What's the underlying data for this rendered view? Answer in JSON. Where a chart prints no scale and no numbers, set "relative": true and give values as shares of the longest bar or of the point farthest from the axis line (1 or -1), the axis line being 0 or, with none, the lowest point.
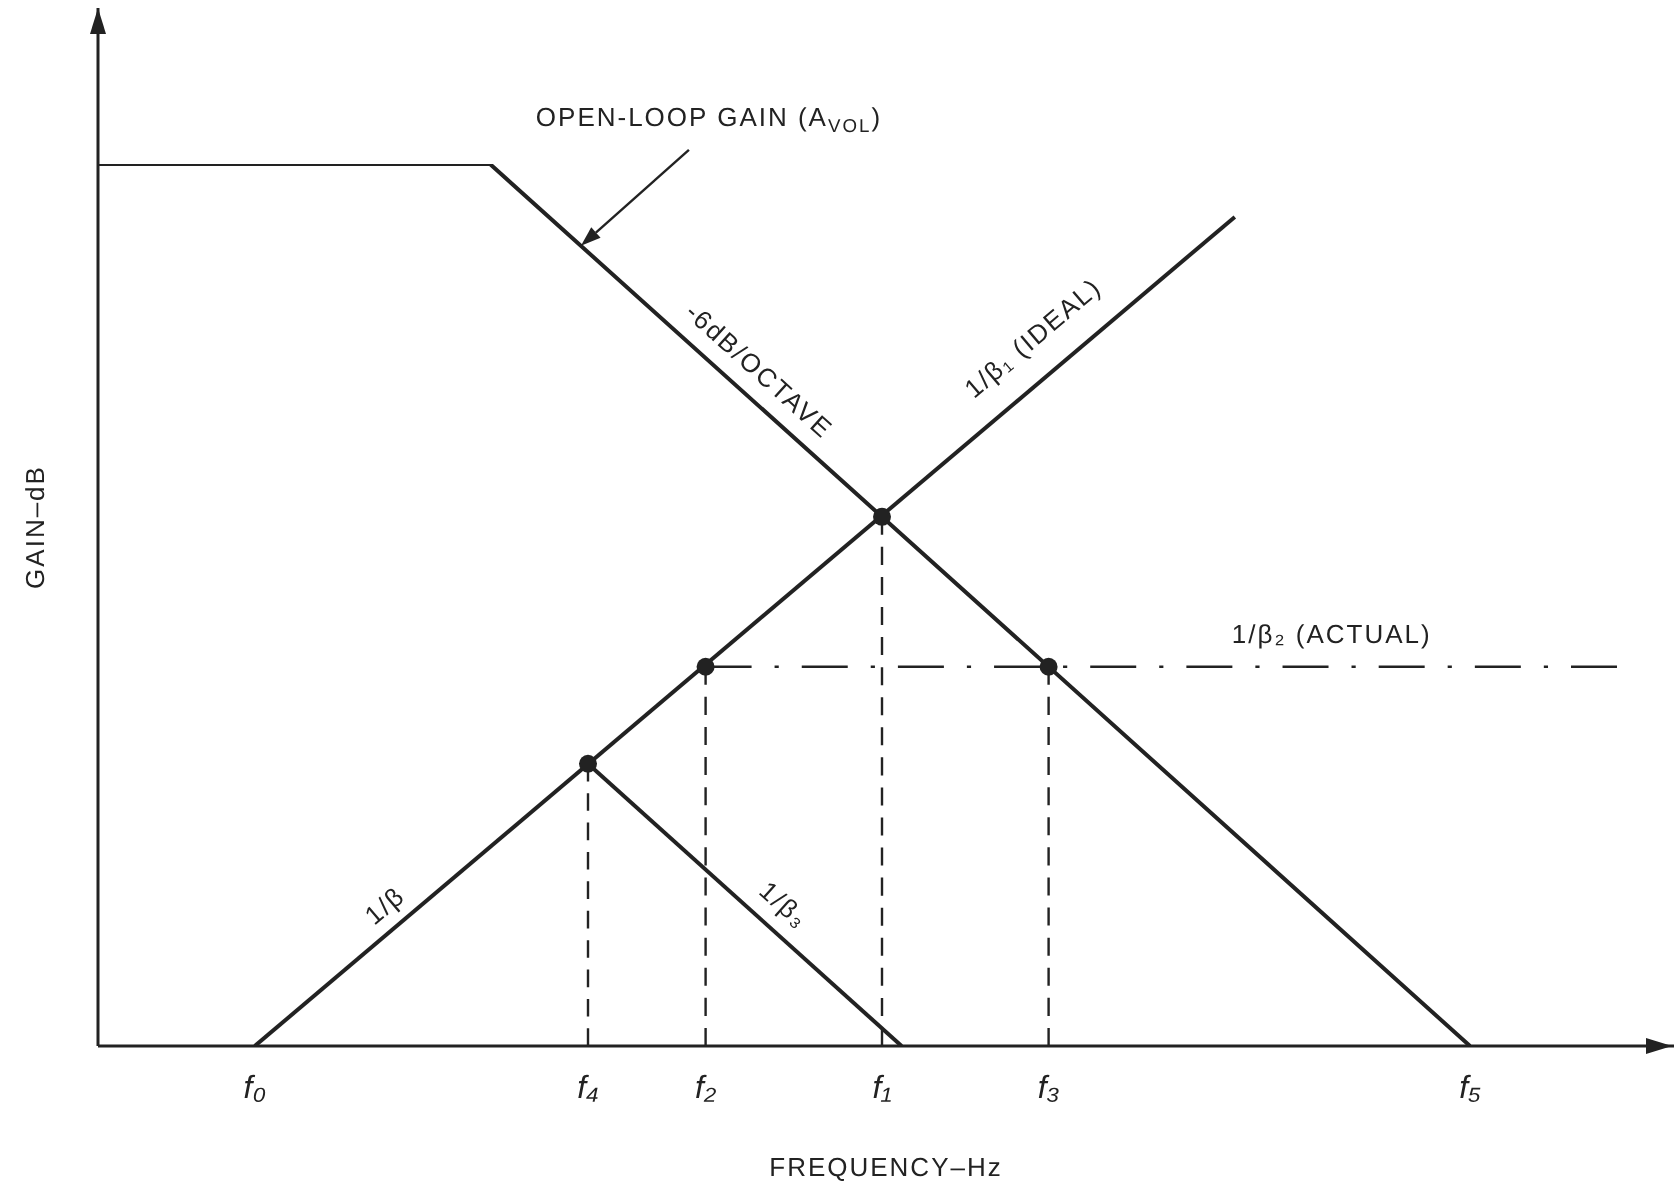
{
  "chart_data": {
    "type": "line",
    "relative": true,
    "xlabel": "FREQUENCY–Hz",
    "ylabel": "GAIN–dB",
    "tick_labels": "x",
    "line_style": "solid",
    "marker": "none",
    "categories": [
      null,
      null,
      null,
      null,
      null,
      null,
      null,
      null,
      null,
      null,
      null,
      null,
      null,
      null,
      null,
      null,
      "f₀",
      null,
      null,
      null,
      null,
      null,
      null,
      null,
      null,
      null,
      null,
      null,
      null,
      null,
      null,
      null,
      null,
      null,
      null,
      null,
      null,
      null,
      null,
      null,
      null,
      null,
      null,
      null,
      null,
      null,
      null,
      null,
      null,
      null,
      "f₄",
      null,
      null,
      null,
      null,
      null,
      null,
      null,
      null,
      null,
      null,
      null,
      "f₂",
      null,
      null,
      null,
      null,
      null,
      null,
      null,
      null,
      null,
      null,
      null,
      null,
      null,
      null,
      null,
      null,
      null,
      "f₁",
      null,
      null,
      null,
      null,
      null,
      null,
      null,
      null,
      null,
      null,
      null,
      null,
      null,
      null,
      null,
      null,
      "f₃",
      null,
      null,
      null,
      null,
      null,
      null,
      null,
      null,
      null,
      null,
      null,
      null,
      null,
      null,
      null,
      null,
      null,
      null,
      null,
      null,
      null,
      null,
      null,
      null,
      null,
      null,
      null,
      null,
      null,
      null,
      null,
      null,
      null,
      null,
      null,
      null,
      null,
      null,
      null,
      null,
      null,
      null,
      "f₅",
      null,
      null,
      null,
      null,
      null,
      null,
      null,
      null,
      null,
      null,
      null,
      null,
      null,
      null,
      null,
      null,
      null,
      null,
      null,
      null
    ],
    "series": [
      {
        "color": "#222222",
        "values": [
          1,
          null,
          null,
          null,
          null,
          null,
          null,
          null,
          null,
          null,
          null,
          null,
          null,
          null,
          null,
          null,
          null,
          null,
          null,
          null,
          null,
          null,
          null,
          null,
          null,
          null,
          null,
          null,
          null,
          null,
          null,
          null,
          null,
          null,
          null,
          null,
          null,
          null,
          null,
          null,
          1,
          null,
          null,
          null,
          null,
          null,
          null,
          null,
          null,
          null,
          null,
          null,
          null,
          null,
          null,
          null,
          null,
          null,
          null,
          null,
          null,
          null,
          null,
          null,
          null,
          null,
          null,
          null,
          null,
          null,
          null,
          null,
          null,
          null,
          null,
          null,
          null,
          null,
          null,
          null,
          null,
          null,
          null,
          null,
          null,
          null,
          null,
          null,
          null,
          null,
          null,
          null,
          null,
          null,
          null,
          null,
          null,
          null,
          null,
          null,
          null,
          null,
          null,
          null,
          null,
          null,
          null,
          null,
          null,
          null,
          null,
          null,
          null,
          null,
          null,
          null,
          null,
          null,
          null,
          null,
          null,
          null,
          null,
          null,
          null,
          null,
          null,
          null,
          null,
          null,
          null,
          null,
          null,
          null,
          null,
          null,
          null,
          null,
          null,
          null,
          0,
          null,
          null,
          null,
          null,
          null,
          null,
          null,
          null,
          null,
          null,
          null,
          null,
          null,
          null,
          null,
          null,
          null,
          null,
          null,
          null
        ]
      },
      {
        "name": "1/β₁ (IDEAL)",
        "color": "#222222",
        "values": [
          null,
          null,
          null,
          null,
          null,
          null,
          null,
          null,
          null,
          null,
          null,
          null,
          null,
          null,
          null,
          null,
          0,
          null,
          null,
          null,
          null,
          null,
          null,
          null,
          null,
          null,
          null,
          null,
          null,
          null,
          null,
          null,
          null,
          null,
          null,
          null,
          null,
          null,
          null,
          null,
          null,
          null,
          null,
          null,
          null,
          null,
          null,
          null,
          null,
          null,
          null,
          null,
          null,
          null,
          null,
          null,
          null,
          null,
          null,
          null,
          null,
          null,
          null,
          null,
          null,
          null,
          null,
          null,
          null,
          null,
          null,
          null,
          null,
          null,
          null,
          null,
          null,
          null,
          null,
          null,
          null,
          null,
          null,
          null,
          null,
          null,
          null,
          null,
          null,
          null,
          null,
          null,
          null,
          null,
          null,
          null,
          null,
          null,
          null,
          null,
          null,
          null,
          null,
          null,
          null,
          null,
          null,
          null,
          null,
          null,
          null,
          null,
          null,
          null,
          null,
          null,
          0.94,
          null,
          null,
          null,
          null,
          null,
          null,
          null,
          null,
          null,
          null,
          null,
          null,
          null,
          null,
          null,
          null,
          null,
          null,
          null,
          null,
          null,
          null,
          null,
          null,
          null,
          null,
          null,
          null,
          null,
          null,
          null,
          null,
          null,
          null,
          null,
          null,
          null,
          null,
          null,
          null,
          null,
          null,
          null,
          null
        ]
      },
      {
        "name": "1/β₂ (ACTUAL)",
        "color": "#222222",
        "line_style": "dashdot",
        "values": [
          null,
          null,
          null,
          null,
          null,
          null,
          null,
          null,
          null,
          null,
          null,
          null,
          null,
          null,
          null,
          null,
          null,
          null,
          null,
          null,
          null,
          null,
          null,
          null,
          null,
          null,
          null,
          null,
          null,
          null,
          null,
          null,
          null,
          null,
          null,
          null,
          null,
          null,
          null,
          null,
          null,
          null,
          null,
          null,
          null,
          null,
          null,
          null,
          null,
          null,
          null,
          null,
          null,
          null,
          null,
          null,
          null,
          null,
          null,
          null,
          null,
          null,
          0.43,
          null,
          null,
          null,
          null,
          null,
          null,
          null,
          null,
          null,
          null,
          null,
          null,
          null,
          null,
          null,
          null,
          null,
          null,
          null,
          null,
          null,
          null,
          null,
          null,
          null,
          null,
          null,
          null,
          null,
          null,
          null,
          null,
          null,
          null,
          null,
          null,
          null,
          null,
          null,
          null,
          null,
          null,
          null,
          null,
          null,
          null,
          null,
          null,
          null,
          null,
          null,
          null,
          null,
          null,
          null,
          null,
          null,
          null,
          null,
          null,
          null,
          null,
          null,
          null,
          null,
          null,
          null,
          null,
          null,
          null,
          null,
          null,
          null,
          null,
          null,
          null,
          null,
          null,
          null,
          null,
          null,
          null,
          null,
          null,
          null,
          null,
          null,
          null,
          null,
          null,
          null,
          null,
          0.43,
          null,
          null,
          null,
          null,
          null
        ]
      },
      {
        "name": "1/β₃",
        "color": "#222222",
        "values": [
          null,
          null,
          null,
          null,
          null,
          null,
          null,
          null,
          null,
          null,
          null,
          null,
          null,
          null,
          null,
          null,
          null,
          null,
          null,
          null,
          null,
          null,
          null,
          null,
          null,
          null,
          null,
          null,
          null,
          null,
          null,
          null,
          null,
          null,
          null,
          null,
          null,
          null,
          null,
          null,
          null,
          null,
          null,
          null,
          null,
          null,
          null,
          null,
          null,
          null,
          0.32,
          null,
          null,
          null,
          null,
          null,
          null,
          null,
          null,
          null,
          null,
          null,
          null,
          null,
          null,
          null,
          null,
          null,
          null,
          null,
          null,
          null,
          null,
          null,
          null,
          null,
          null,
          null,
          null,
          null,
          null,
          null,
          0,
          null,
          null,
          null,
          null,
          null,
          null,
          null,
          null,
          null,
          null,
          null,
          null,
          null,
          null,
          null,
          null,
          null,
          null,
          null,
          null,
          null,
          null,
          null,
          null,
          null,
          null,
          null,
          null,
          null,
          null,
          null,
          null,
          null,
          null,
          null,
          null,
          null,
          null,
          null,
          null,
          null,
          null,
          null,
          null,
          null,
          null,
          null,
          null,
          null,
          null,
          null,
          null,
          null,
          null,
          null,
          null,
          null,
          null,
          null,
          null,
          null,
          null,
          null,
          null,
          null,
          null,
          null,
          null,
          null,
          null,
          null,
          null,
          null,
          null,
          null,
          null,
          null,
          null
        ]
      },
      {
        "type": "lollipop",
        "color": "#222222",
        "line_style": "dashed",
        "marker": "circle",
        "values": [
          null,
          null,
          null,
          null,
          null,
          null,
          null,
          null,
          null,
          null,
          null,
          null,
          null,
          null,
          null,
          null,
          null,
          null,
          null,
          null,
          null,
          null,
          null,
          null,
          null,
          null,
          null,
          null,
          null,
          null,
          null,
          null,
          null,
          null,
          null,
          null,
          null,
          null,
          null,
          null,
          null,
          null,
          null,
          null,
          null,
          null,
          null,
          null,
          null,
          null,
          0.32,
          null,
          null,
          null,
          null,
          null,
          null,
          null,
          null,
          null,
          null,
          null,
          0.43,
          null,
          null,
          null,
          null,
          null,
          null,
          null,
          null,
          null,
          null,
          null,
          null,
          null,
          null,
          null,
          null,
          null,
          0.6,
          null,
          null,
          null,
          null,
          null,
          null,
          null,
          null,
          null,
          null,
          null,
          null,
          null,
          null,
          null,
          null,
          0.43,
          null,
          null,
          null,
          null,
          null,
          null,
          null,
          null,
          null,
          null,
          null,
          null,
          null,
          null,
          null,
          null,
          null,
          null,
          null,
          null,
          null,
          null,
          null,
          null,
          null,
          null,
          null,
          null,
          null,
          null,
          null,
          null,
          null,
          null,
          null,
          null,
          null,
          null,
          null,
          null,
          null,
          null,
          null,
          null,
          null,
          null,
          null,
          null,
          null,
          null,
          null,
          null,
          null,
          null,
          null,
          null,
          null,
          null,
          null,
          null,
          null,
          null,
          null
        ]
      }
    ],
    "annotations": [
      "OPEN-LOOP GAIN (A$_{VOL}$)",
      "-6dB/OCTAVE",
      "1/β"
    ]
  }
}
